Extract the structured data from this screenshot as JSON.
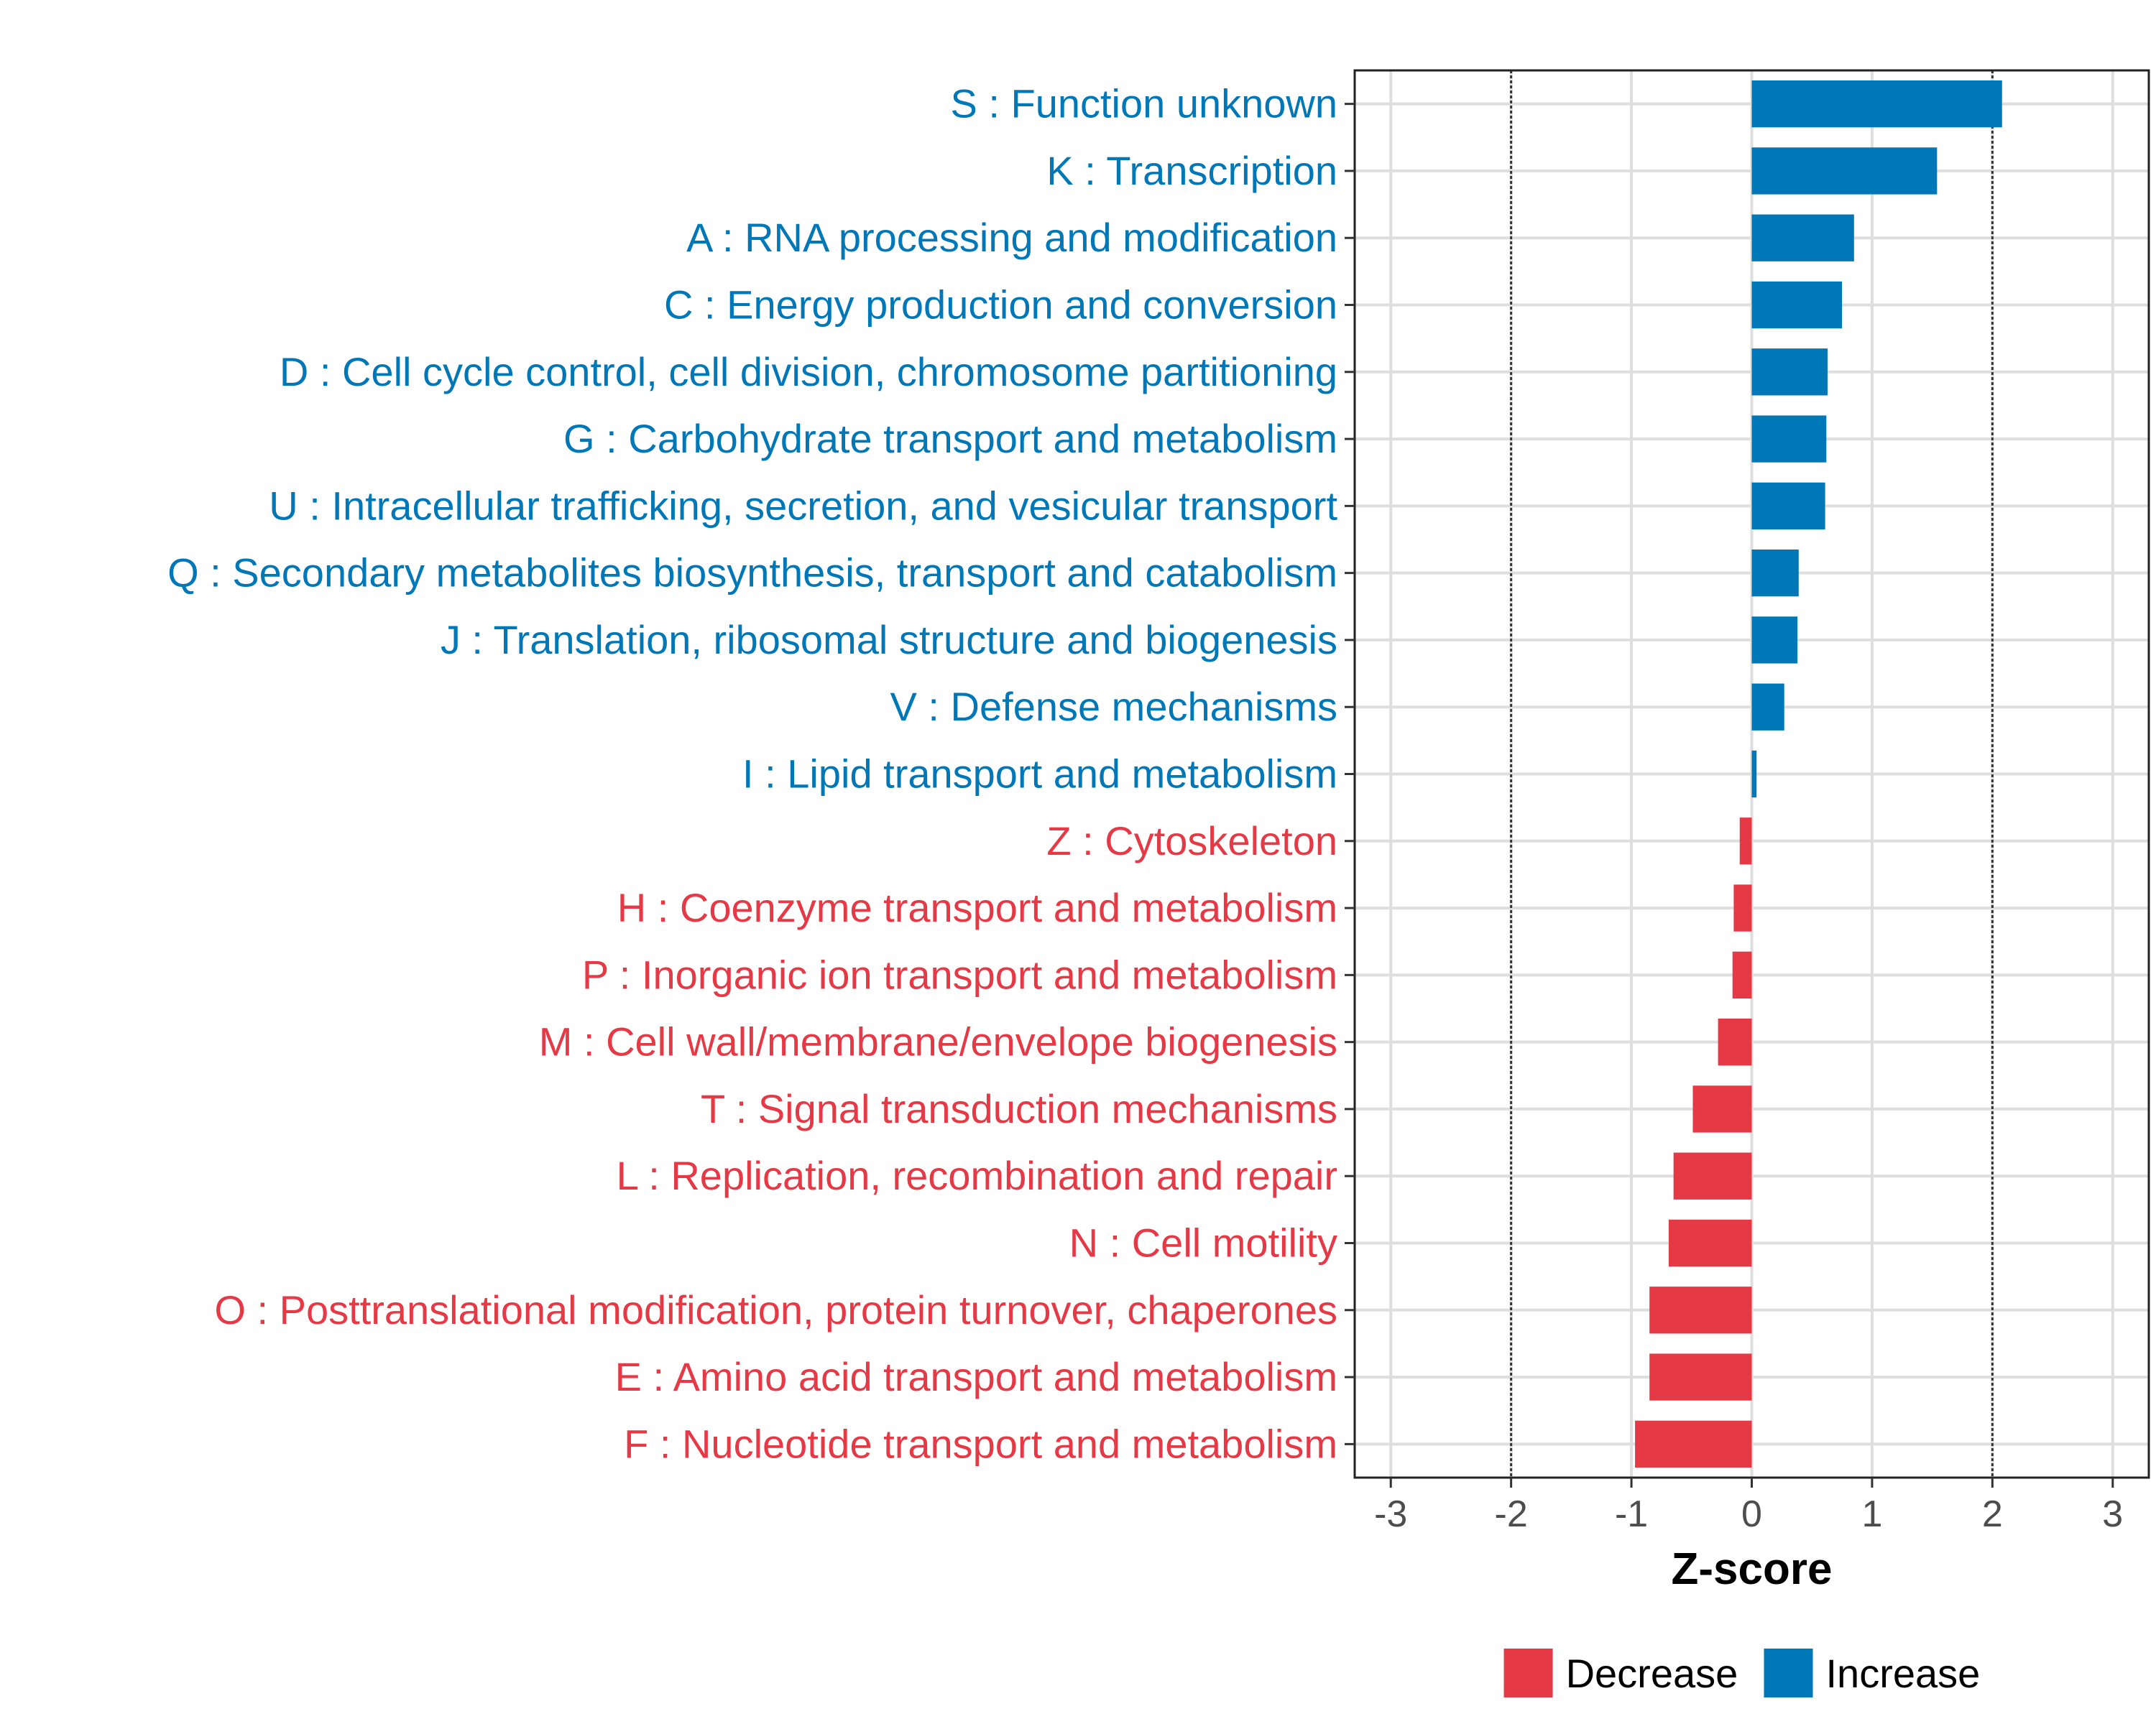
{
  "chart_data": {
    "type": "bar",
    "orientation": "horizontal",
    "title": "",
    "xlabel": "Z-score",
    "ylabel": "",
    "xlim": [
      -3.3,
      3.3
    ],
    "xticks": [
      -3,
      -2,
      -1,
      0,
      1,
      2,
      3
    ],
    "xtick_labels": [
      "-3",
      "-2",
      "-1",
      "0",
      "1",
      "2",
      "3"
    ],
    "reference_lines": [
      -2,
      2
    ],
    "grid": true,
    "categories": [
      "S : Function unknown",
      "K : Transcription",
      "A : RNA processing and modification",
      "C : Energy production and conversion",
      "D : Cell cycle control, cell division, chromosome partitioning",
      "G : Carbohydrate transport and metabolism",
      "U : Intracellular trafficking, secretion, and vesicular transport",
      "Q : Secondary metabolites biosynthesis, transport and catabolism",
      "J : Translation, ribosomal structure and biogenesis",
      "V : Defense mechanisms",
      "I : Lipid transport and metabolism",
      "Z : Cytoskeleton",
      "H : Coenzyme transport and metabolism",
      "P : Inorganic ion transport and metabolism",
      "M : Cell wall/membrane/envelope biogenesis",
      "T : Signal transduction mechanisms",
      "L : Replication, recombination and repair",
      "N : Cell motility",
      "O : Posttranslational modification, protein turnover, chaperones",
      "E : Amino acid transport and metabolism",
      "F : Nucleotide transport and metabolism"
    ],
    "values": [
      2.08,
      1.54,
      0.85,
      0.75,
      0.63,
      0.62,
      0.61,
      0.39,
      0.38,
      0.27,
      0.04,
      -0.1,
      -0.15,
      -0.16,
      -0.28,
      -0.49,
      -0.65,
      -0.69,
      -0.85,
      -0.85,
      -0.97
    ],
    "groups": [
      "Increase",
      "Increase",
      "Increase",
      "Increase",
      "Increase",
      "Increase",
      "Increase",
      "Increase",
      "Increase",
      "Increase",
      "Increase",
      "Decrease",
      "Decrease",
      "Decrease",
      "Decrease",
      "Decrease",
      "Decrease",
      "Decrease",
      "Decrease",
      "Decrease",
      "Decrease"
    ],
    "legend": {
      "position": "bottom",
      "items": [
        {
          "label": "Decrease",
          "color": "#e63946"
        },
        {
          "label": "Increase",
          "color": "#0077b6"
        }
      ]
    },
    "colors": {
      "Increase": "#0077b6",
      "Decrease": "#e63946"
    }
  }
}
